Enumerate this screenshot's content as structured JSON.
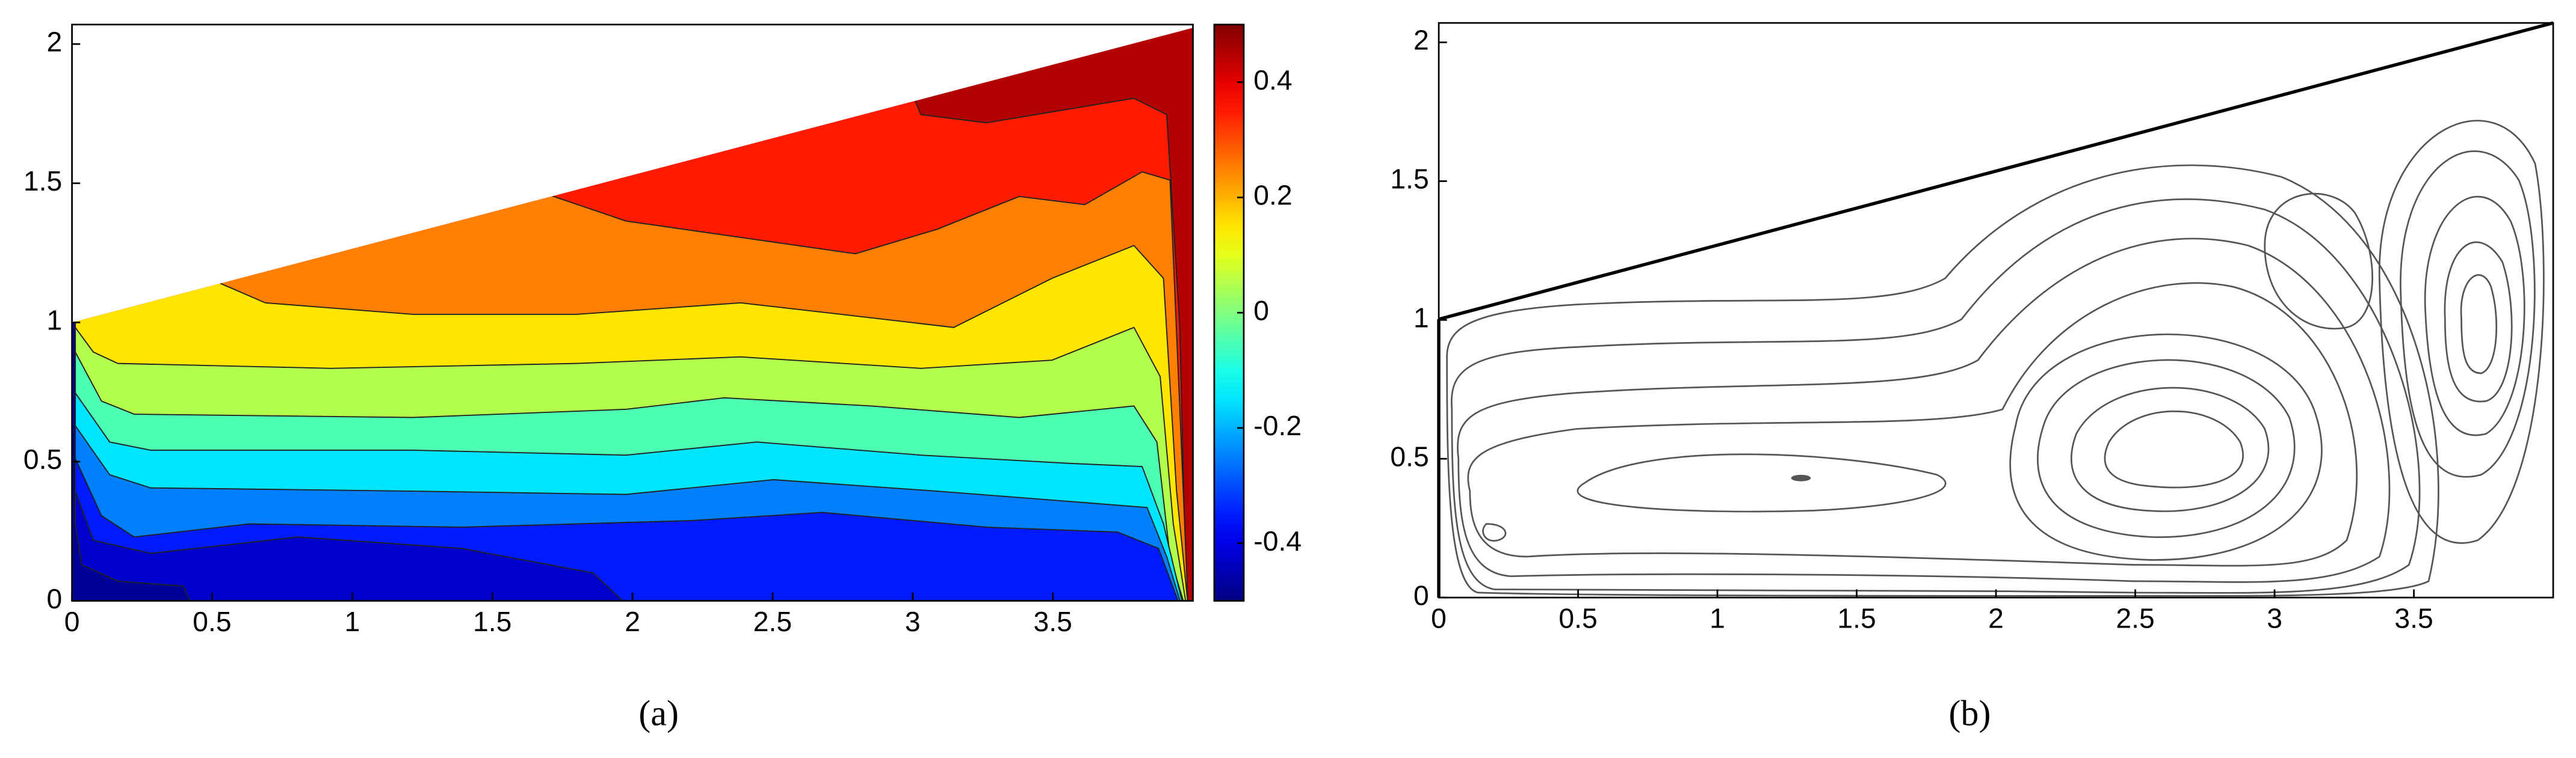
{
  "chart_data": [
    {
      "type": "contour",
      "caption": "(a)",
      "xlim": [
        0,
        4
      ],
      "ylim": [
        0,
        2.07
      ],
      "xticks": [
        0,
        0.5,
        1,
        1.5,
        2,
        2.5,
        3,
        3.5
      ],
      "yticks": [
        0,
        0.5,
        1,
        1.5,
        2
      ],
      "levels": [
        0.4,
        0.3,
        0.2,
        0.1,
        0,
        -0.1,
        -0.2,
        -0.3,
        -0.4,
        -0.45
      ],
      "colorbar": {
        "clim": [
          -0.5,
          0.5
        ],
        "ticks": [
          -0.4,
          -0.2,
          0,
          0.2,
          0.4
        ],
        "colormap": "jet"
      }
    },
    {
      "type": "streamline",
      "caption": "(b)",
      "xlim": [
        0,
        4
      ],
      "ylim": [
        0,
        2.07
      ],
      "xticks": [
        0,
        0.5,
        1,
        1.5,
        2,
        2.5,
        3,
        3.5
      ],
      "yticks": [
        0,
        0.5,
        1,
        1.5,
        2
      ]
    }
  ]
}
